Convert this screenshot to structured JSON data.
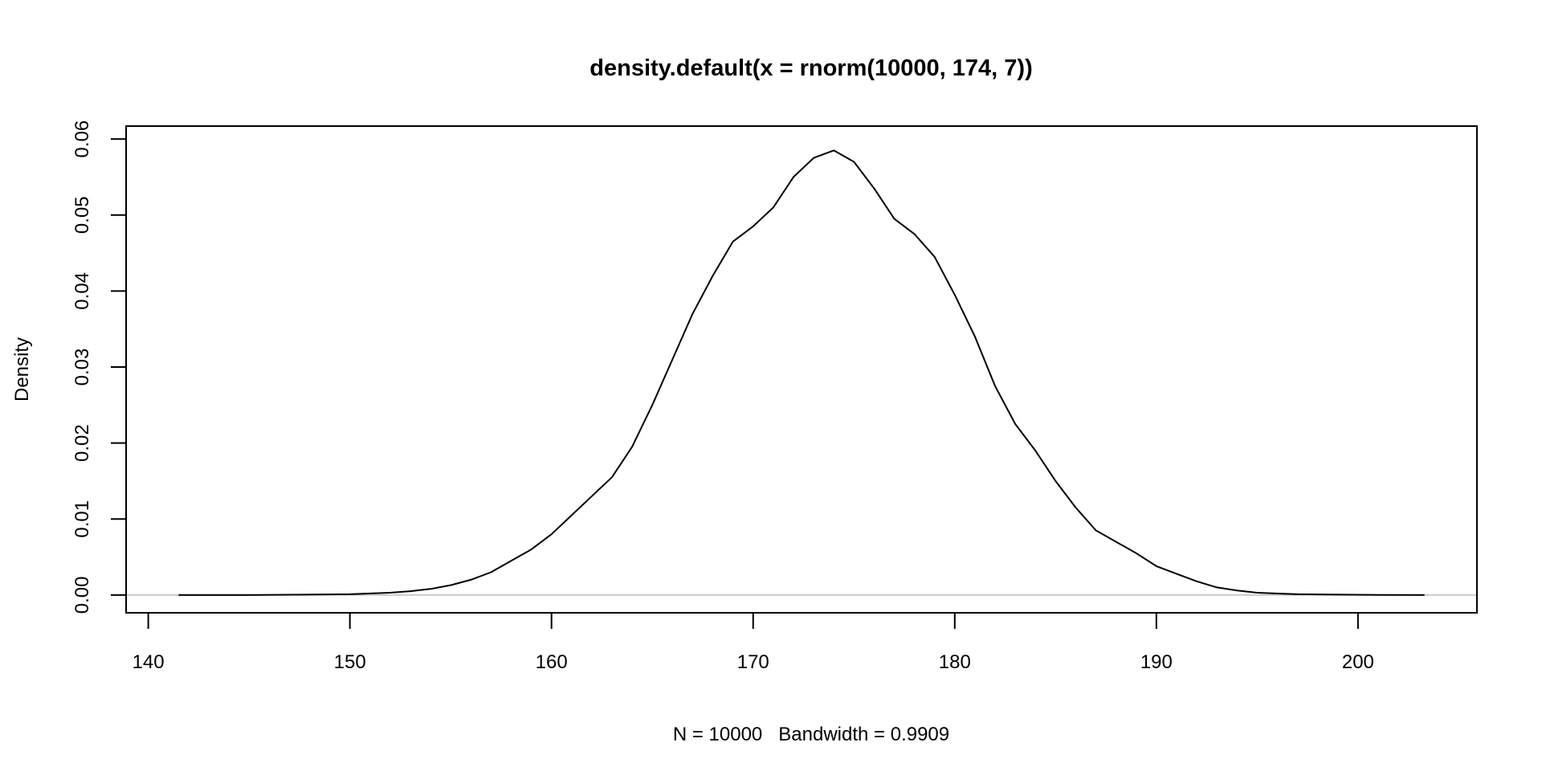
{
  "chart_data": {
    "type": "line",
    "title": "density.default(x = rnorm(10000, 174, 7))",
    "xlabel": "N = 10000   Bandwidth = 0.9909",
    "ylabel": "Density",
    "xlim": [
      138.9,
      205.9
    ],
    "ylim": [
      -0.00234,
      0.0617
    ],
    "x_ticks": [
      140,
      150,
      160,
      170,
      180,
      190,
      200
    ],
    "y_ticks": [
      0.0,
      0.01,
      0.02,
      0.03,
      0.04,
      0.05,
      0.06
    ],
    "x_tick_labels": [
      "140",
      "150",
      "160",
      "170",
      "180",
      "190",
      "200"
    ],
    "y_tick_labels": [
      "0.00",
      "0.01",
      "0.02",
      "0.03",
      "0.04",
      "0.05",
      "0.06"
    ],
    "grid": false,
    "zero_line_color": "#bebebe",
    "line_color": "#000000",
    "series": [
      {
        "name": "density",
        "x": [
          141.5,
          145,
          150,
          152,
          153,
          154,
          155,
          156,
          157,
          158,
          159,
          160,
          161,
          162,
          163,
          164,
          165,
          166,
          167,
          168,
          169,
          170,
          171,
          172,
          173,
          174,
          175,
          176,
          177,
          178,
          179,
          180,
          181,
          182,
          183,
          184,
          185,
          186,
          187,
          188,
          189,
          190,
          191,
          192,
          193,
          194,
          195,
          196,
          197,
          199,
          201,
          203.3
        ],
        "y": [
          0,
          0,
          0.0001,
          0.0003,
          0.0005,
          0.0008,
          0.0013,
          0.002,
          0.003,
          0.0045,
          0.006,
          0.008,
          0.0105,
          0.013,
          0.0155,
          0.0195,
          0.025,
          0.031,
          0.037,
          0.042,
          0.0465,
          0.0485,
          0.051,
          0.055,
          0.0575,
          0.0585,
          0.057,
          0.0535,
          0.0495,
          0.0475,
          0.0445,
          0.0395,
          0.034,
          0.0275,
          0.0225,
          0.019,
          0.015,
          0.0115,
          0.0085,
          0.007,
          0.0055,
          0.0038,
          0.0028,
          0.0018,
          0.001,
          0.0006,
          0.0003,
          0.0002,
          0.0001,
          5e-05,
          2e-05,
          0
        ]
      }
    ]
  }
}
